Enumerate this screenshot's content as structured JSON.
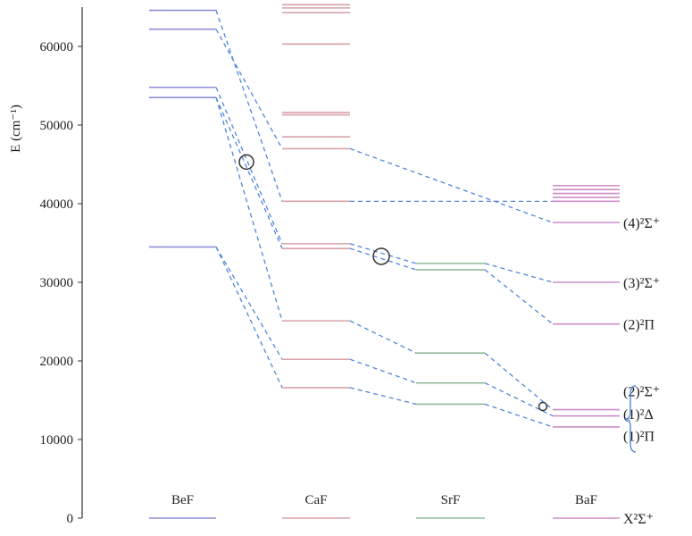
{
  "chart_data": {
    "type": "energy-level-diagram",
    "ylabel": "E (cm⁻¹)",
    "ylim": [
      0,
      65000
    ],
    "yticks": [
      0,
      10000,
      20000,
      30000,
      40000,
      50000,
      60000
    ],
    "ytick_labels": [
      "0",
      "10000",
      "20000",
      "30000",
      "40000",
      "50000",
      "60000"
    ],
    "molecules": [
      {
        "name": "BeF",
        "color": "#8e8ed6",
        "levels": [
          0,
          34500,
          53500,
          54800,
          62200,
          64600
        ]
      },
      {
        "name": "CaF",
        "color": "#d7a2aa",
        "levels": [
          0,
          16600,
          20200,
          25100,
          34300,
          34900,
          40300,
          47000,
          48500,
          51300,
          51600,
          60300,
          64300,
          64900,
          65300
        ]
      },
      {
        "name": "SrF",
        "color": "#93b99a",
        "levels": [
          0,
          14500,
          17200,
          21000,
          31600,
          32400
        ]
      },
      {
        "name": "BaF",
        "color": "#cd8ec8",
        "levels": [
          0,
          11600,
          13000,
          13800,
          24700,
          30000,
          37600,
          40300,
          40800,
          41300,
          41800,
          42300
        ]
      }
    ],
    "correlations": [
      {
        "name": "(4)²Σ⁺",
        "points": [
          64600,
          40300,
          null,
          40300
        ]
      },
      {
        "name": "(3)²Σ⁺",
        "points": [
          62200,
          47000,
          null,
          37600
        ]
      },
      {
        "name": "(2)²Π",
        "points": [
          54800,
          34900,
          32400,
          30000
        ]
      },
      {
        "name": "(2)²Σ⁺",
        "points": [
          53500,
          34300,
          31600,
          24700
        ]
      },
      {
        "name": "(1)²Δ",
        "points": [
          53500,
          25100,
          21000,
          13800
        ]
      },
      {
        "name": "(1)²Π",
        "points": [
          34500,
          20200,
          17200,
          13000
        ]
      },
      {
        "name": "X²Σ⁺",
        "points": [
          34500,
          16600,
          14500,
          11600
        ]
      }
    ],
    "state_labels": [
      {
        "text": "(4)²Σ⁺",
        "y": 37600
      },
      {
        "text": "(3)²Σ⁺",
        "y": 30000
      },
      {
        "text": "(2)²Π",
        "y": 24700
      },
      {
        "text": "(2)²Σ⁺",
        "y": 16200
      },
      {
        "text": "(1)²Δ",
        "y": 13300
      },
      {
        "text": "(1)²Π",
        "y": 10500
      },
      {
        "text": "X²Σ⁺",
        "y": 0
      }
    ],
    "crossing_markers": [
      {
        "molecule_gap": "BeF-CaF",
        "y": 45300
      },
      {
        "molecule_gap": "CaF-SrF",
        "y": 33300
      },
      {
        "molecule_gap": "SrF-BaF",
        "y": 14200
      }
    ]
  }
}
